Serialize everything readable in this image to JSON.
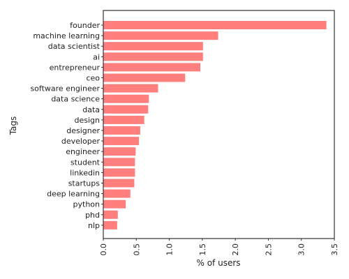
{
  "chart_data": {
    "type": "bar",
    "orientation": "horizontal",
    "title": "",
    "xlabel": "% of users",
    "ylabel": "Tags",
    "xlim": [
      0,
      3.5
    ],
    "xticks": [
      "0.0",
      "0.5",
      "1.0",
      "1.5",
      "2.0",
      "2.5",
      "3.0",
      "3.5"
    ],
    "grid": false,
    "bar_color": "#ff7f7f",
    "categories": [
      "founder",
      "machine learning",
      "data scientist",
      "ai",
      "entrepreneur",
      "ceo",
      "software engineer",
      "data science",
      "data",
      "design",
      "designer",
      "developer",
      "engineer",
      "student",
      "linkedin",
      "startups",
      "deep learning",
      "python",
      "phd",
      "nlp"
    ],
    "values": [
      3.38,
      1.74,
      1.51,
      1.51,
      1.47,
      1.24,
      0.83,
      0.69,
      0.68,
      0.62,
      0.56,
      0.54,
      0.49,
      0.48,
      0.48,
      0.47,
      0.41,
      0.34,
      0.22,
      0.21
    ]
  }
}
